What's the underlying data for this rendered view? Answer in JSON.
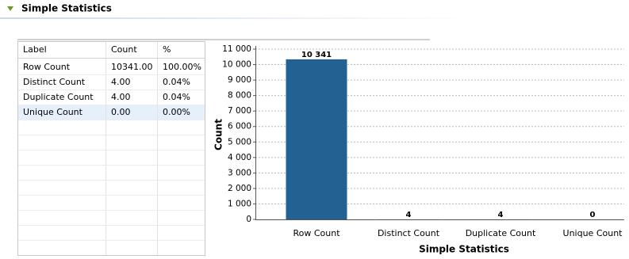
{
  "header": {
    "title": "Simple Statistics"
  },
  "table": {
    "columns": [
      "Label",
      "Count",
      "%"
    ],
    "rows": [
      [
        "Row Count",
        "10341.00",
        "100.00%"
      ],
      [
        "Distinct Count",
        "4.00",
        "0.04%"
      ],
      [
        "Duplicate Count",
        "4.00",
        "0.04%"
      ],
      [
        "Unique Count",
        "0.00",
        "0.00%"
      ]
    ]
  },
  "chart_data": {
    "type": "bar",
    "categories": [
      "Row Count",
      "Distinct Count",
      "Duplicate Count",
      "Unique Count"
    ],
    "values": [
      10341,
      4,
      4,
      0
    ],
    "value_labels": [
      "10 341",
      "4",
      "4",
      "0"
    ],
    "color": "#236192",
    "x_label": "Simple Statistics",
    "y_label": "Count",
    "ylim": [
      0,
      11000
    ],
    "yticks": [
      0,
      {
        "value": 1000,
        "label": "1 000"
      },
      {
        "value": 2000,
        "label": "2 000"
      },
      {
        "value": 3000,
        "label": "3 000"
      },
      {
        "value": 4000,
        "label": "4 000"
      },
      {
        "value": 5000,
        "label": "5 000"
      },
      {
        "value": 6000,
        "label": "6 000"
      },
      {
        "value": 7000,
        "label": "7 000"
      },
      {
        "value": 8000,
        "label": "8 000"
      },
      {
        "value": 9000,
        "label": "9 000"
      },
      {
        "value": 10000,
        "label": "10 000"
      },
      {
        "value": 11000,
        "label": "11 000"
      }
    ],
    "grid": true
  }
}
